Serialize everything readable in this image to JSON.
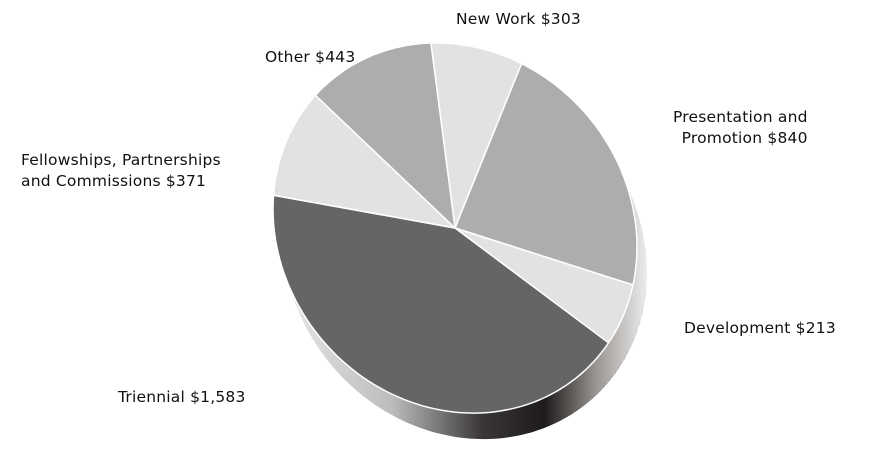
{
  "chart_data": {
    "type": "pie",
    "title": "",
    "slices": [
      {
        "label": "New Work",
        "value": 303,
        "value_label": "$303",
        "color": "#e2e2e2"
      },
      {
        "label": "Presentation and Promotion",
        "value": 840,
        "value_label": "$840",
        "color": "#adadad"
      },
      {
        "label": "Development",
        "value": 213,
        "value_label": "$213",
        "color": "#e2e2e2"
      },
      {
        "label": "Triennial",
        "value": 1583,
        "value_label": "$1,583",
        "color": "#656565"
      },
      {
        "label": "Fellowships, Partnerships and Commissions",
        "value": 371,
        "value_label": "$371",
        "color": "#e2e2e2"
      },
      {
        "label": "Other",
        "value": 443,
        "value_label": "$443",
        "color": "#adadad"
      }
    ],
    "labels": {
      "new_work": "New Work $303",
      "presentation_line1": "Presentation and",
      "presentation_line2": "Promotion $840",
      "development": "Development $213",
      "triennial": "Triennial $1,583",
      "fellowships_line1": "Fellowships, Partnerships",
      "fellowships_line2": "and Commissions $371",
      "other": "Other $443"
    },
    "style": "3d-tilted",
    "legend": "none"
  }
}
